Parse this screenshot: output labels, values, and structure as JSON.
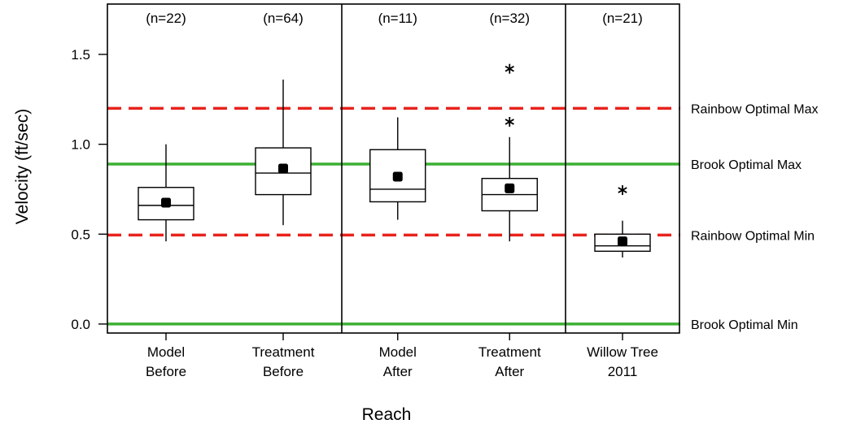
{
  "chart_data": {
    "type": "box",
    "xlabel": "Reach",
    "ylabel": "Velocity (ft/sec)",
    "ylim": [
      -0.05,
      1.78
    ],
    "yticks": [
      {
        "value": 0.0,
        "label": "0.0"
      },
      {
        "value": 0.5,
        "label": "0.5"
      },
      {
        "value": 1.0,
        "label": "1.0"
      },
      {
        "value": 1.5,
        "label": "1.5"
      }
    ],
    "grid": false,
    "panels": [
      {
        "group_count": 2
      },
      {
        "group_count": 2
      },
      {
        "group_count": 1
      }
    ],
    "groups": [
      {
        "label_lines": [
          "Model",
          "Before"
        ],
        "n_label": "(n=22)",
        "whisker_low": 0.46,
        "q1": 0.58,
        "median": 0.66,
        "q3": 0.76,
        "whisker_high": 1.0,
        "mean": 0.675,
        "outliers": []
      },
      {
        "label_lines": [
          "Treatment",
          "Before"
        ],
        "n_label": "(n=64)",
        "whisker_low": 0.55,
        "q1": 0.72,
        "median": 0.84,
        "q3": 0.98,
        "whisker_high": 1.36,
        "mean": 0.865,
        "outliers": []
      },
      {
        "label_lines": [
          "Model",
          "After"
        ],
        "n_label": "(n=11)",
        "whisker_low": 0.58,
        "q1": 0.68,
        "median": 0.75,
        "q3": 0.97,
        "whisker_high": 1.15,
        "mean": 0.82,
        "outliers": []
      },
      {
        "label_lines": [
          "Treatment",
          "After"
        ],
        "n_label": "(n=32)",
        "whisker_low": 0.46,
        "q1": 0.63,
        "median": 0.72,
        "q3": 0.81,
        "whisker_high": 1.04,
        "mean": 0.755,
        "outliers": [
          1.125,
          1.42
        ]
      },
      {
        "label_lines": [
          "Willow Tree",
          "2011"
        ],
        "n_label": "(n=21)",
        "whisker_low": 0.37,
        "q1": 0.405,
        "median": 0.435,
        "q3": 0.5,
        "whisker_high": 0.575,
        "mean": 0.46,
        "outliers": [
          0.745
        ]
      }
    ],
    "reference_lines": [
      {
        "value": 1.2,
        "label": "Rainbow Optimal Max",
        "color": "#e8231d",
        "style": "dashed"
      },
      {
        "value": 0.89,
        "label": "Brook Optimal Max",
        "color": "#3cb034",
        "style": "solid"
      },
      {
        "value": 0.495,
        "label": "Rainbow Optimal Min",
        "color": "#e8231d",
        "style": "dashed"
      },
      {
        "value": 0.0,
        "label": "Brook Optimal Min",
        "color": "#3cb034",
        "style": "solid"
      }
    ]
  }
}
